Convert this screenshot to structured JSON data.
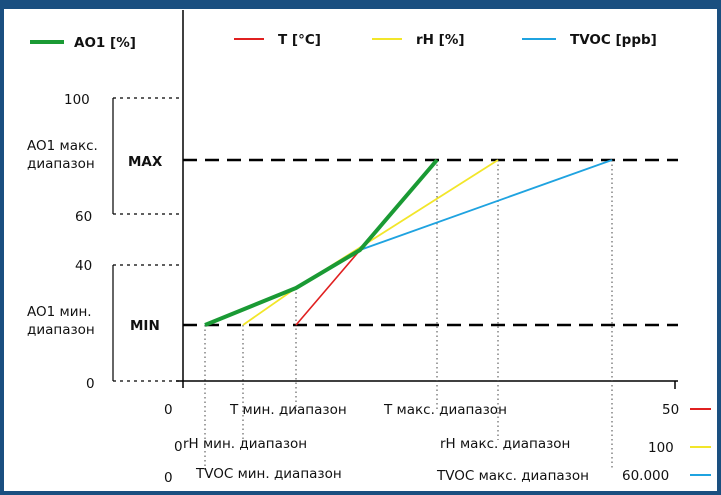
{
  "legend": [
    {
      "label": "AO1 [%]",
      "color": "#1a9a34"
    },
    {
      "label": "T [°C]",
      "color": "#e02020"
    },
    {
      "label": "rH [%]",
      "color": "#f2e62a"
    },
    {
      "label": "TVOC [ppb]",
      "color": "#1fa3e0"
    }
  ],
  "y_axis": {
    "ticks": [
      "100",
      "60",
      "40",
      "0"
    ],
    "max_label": "MAX",
    "min_label": "MIN",
    "max_range_line1": "AO1 макс.",
    "max_range_line2": "диапазон",
    "min_range_line1": "AO1 мин.",
    "min_range_line2": "диапазон"
  },
  "x_axis": {
    "origin": "0",
    "t_min": "T мин. диапазон",
    "t_max": "T макс. диапазон",
    "t_end": "50",
    "rh_origin": "0",
    "rh_min": "rH мин. диапазон",
    "rh_max": "rH макс. диапазон",
    "rh_end": "100",
    "tvoc_origin": "0",
    "tvoc_min": "TVOC мин. диапазон",
    "tvoc_max": "TVOC макс. диапазон",
    "tvoc_end": "60.000"
  },
  "colors": {
    "frame": "#1a4f80",
    "ao1": "#1a9a34",
    "t": "#e02020",
    "rh": "#f2e62a",
    "tvoc": "#1fa3e0"
  }
}
